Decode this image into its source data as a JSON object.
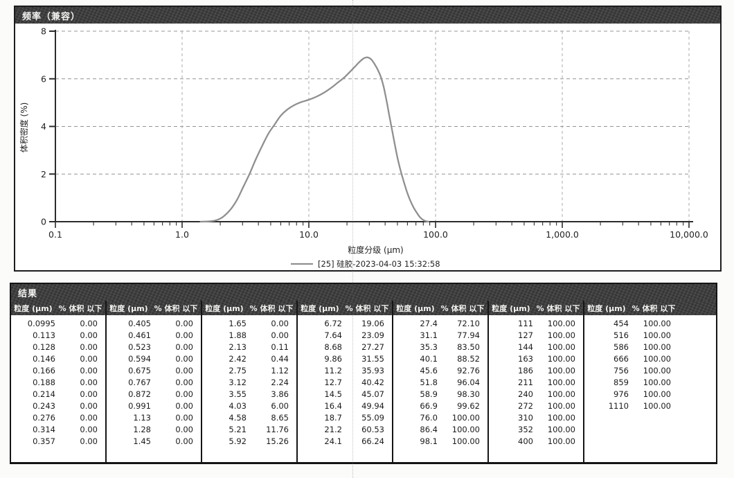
{
  "frequency_panel": {
    "title": "频率（兼容）"
  },
  "results_panel": {
    "title": "结果"
  },
  "chart_data": [
    {
      "type": "line",
      "title": "频率（兼容）",
      "xlabel": "粒度分级 (μm)",
      "ylabel": "体积密度 (%)",
      "x_scale": "log",
      "xlim": [
        0.1,
        10000
      ],
      "ylim": [
        0,
        8
      ],
      "xtick_labels": [
        "0.1",
        "1.0",
        "10.0",
        "100.0",
        "1,000.0",
        "10,000.0"
      ],
      "xtick_values": [
        0.1,
        1,
        10,
        100,
        1000,
        10000
      ],
      "yticks": [
        0,
        2,
        4,
        6,
        8
      ],
      "grid": "dashed",
      "legend_position": "bottom-center",
      "series": [
        {
          "name": "[25] 硅胶-2023-04-03 15:32:58",
          "color": "#8f8f8f",
          "points": [
            [
              1.4,
              0
            ],
            [
              1.7,
              0.02
            ],
            [
              1.9,
              0.08
            ],
            [
              2.1,
              0.2
            ],
            [
              2.4,
              0.5
            ],
            [
              2.7,
              0.9
            ],
            [
              3.0,
              1.4
            ],
            [
              3.4,
              2.0
            ],
            [
              3.8,
              2.6
            ],
            [
              4.3,
              3.2
            ],
            [
              4.8,
              3.7
            ],
            [
              5.4,
              4.1
            ],
            [
              6.0,
              4.45
            ],
            [
              6.8,
              4.72
            ],
            [
              7.7,
              4.9
            ],
            [
              8.7,
              5.02
            ],
            [
              10,
              5.12
            ],
            [
              11.5,
              5.25
            ],
            [
              13,
              5.4
            ],
            [
              15,
              5.62
            ],
            [
              17,
              5.85
            ],
            [
              19,
              6.05
            ],
            [
              21,
              6.28
            ],
            [
              23,
              6.5
            ],
            [
              25,
              6.7
            ],
            [
              27,
              6.85
            ],
            [
              29,
              6.9
            ],
            [
              31,
              6.82
            ],
            [
              33,
              6.62
            ],
            [
              35,
              6.38
            ],
            [
              37,
              6.08
            ],
            [
              39,
              5.65
            ],
            [
              41,
              5.1
            ],
            [
              43,
              4.5
            ],
            [
              45,
              3.95
            ],
            [
              47.5,
              3.3
            ],
            [
              50,
              2.7
            ],
            [
              53,
              2.15
            ],
            [
              56,
              1.7
            ],
            [
              59.5,
              1.25
            ],
            [
              63,
              0.9
            ],
            [
              67,
              0.6
            ],
            [
              71,
              0.38
            ],
            [
              75,
              0.2
            ],
            [
              79,
              0.09
            ],
            [
              83,
              0.03
            ],
            [
              88,
              0
            ]
          ]
        }
      ]
    },
    {
      "type": "table",
      "title": "结果",
      "column_group_headers": [
        "粒度 (μm)",
        "% 体积 以下"
      ],
      "groups": [
        [
          [
            "0.0995",
            "0.00"
          ],
          [
            "0.113",
            "0.00"
          ],
          [
            "0.128",
            "0.00"
          ],
          [
            "0.146",
            "0.00"
          ],
          [
            "0.166",
            "0.00"
          ],
          [
            "0.188",
            "0.00"
          ],
          [
            "0.214",
            "0.00"
          ],
          [
            "0.243",
            "0.00"
          ],
          [
            "0.276",
            "0.00"
          ],
          [
            "0.314",
            "0.00"
          ],
          [
            "0.357",
            "0.00"
          ]
        ],
        [
          [
            "0.405",
            "0.00"
          ],
          [
            "0.461",
            "0.00"
          ],
          [
            "0.523",
            "0.00"
          ],
          [
            "0.594",
            "0.00"
          ],
          [
            "0.675",
            "0.00"
          ],
          [
            "0.767",
            "0.00"
          ],
          [
            "0.872",
            "0.00"
          ],
          [
            "0.991",
            "0.00"
          ],
          [
            "1.13",
            "0.00"
          ],
          [
            "1.28",
            "0.00"
          ],
          [
            "1.45",
            "0.00"
          ]
        ],
        [
          [
            "1.65",
            "0.00"
          ],
          [
            "1.88",
            "0.00"
          ],
          [
            "2.13",
            "0.11"
          ],
          [
            "2.42",
            "0.44"
          ],
          [
            "2.75",
            "1.12"
          ],
          [
            "3.12",
            "2.24"
          ],
          [
            "3.55",
            "3.86"
          ],
          [
            "4.03",
            "6.00"
          ],
          [
            "4.58",
            "8.65"
          ],
          [
            "5.21",
            "11.76"
          ],
          [
            "5.92",
            "15.26"
          ]
        ],
        [
          [
            "6.72",
            "19.06"
          ],
          [
            "7.64",
            "23.09"
          ],
          [
            "8.68",
            "27.27"
          ],
          [
            "9.86",
            "31.55"
          ],
          [
            "11.2",
            "35.93"
          ],
          [
            "12.7",
            "40.42"
          ],
          [
            "14.5",
            "45.07"
          ],
          [
            "16.4",
            "49.94"
          ],
          [
            "18.7",
            "55.09"
          ],
          [
            "21.2",
            "60.53"
          ],
          [
            "24.1",
            "66.24"
          ]
        ],
        [
          [
            "27.4",
            "72.10"
          ],
          [
            "31.1",
            "77.94"
          ],
          [
            "35.3",
            "83.50"
          ],
          [
            "40.1",
            "88.52"
          ],
          [
            "45.6",
            "92.76"
          ],
          [
            "51.8",
            "96.04"
          ],
          [
            "58.9",
            "98.30"
          ],
          [
            "66.9",
            "99.62"
          ],
          [
            "76.0",
            "100.00"
          ],
          [
            "86.4",
            "100.00"
          ],
          [
            "98.1",
            "100.00"
          ]
        ],
        [
          [
            "111",
            "100.00"
          ],
          [
            "127",
            "100.00"
          ],
          [
            "144",
            "100.00"
          ],
          [
            "163",
            "100.00"
          ],
          [
            "186",
            "100.00"
          ],
          [
            "211",
            "100.00"
          ],
          [
            "240",
            "100.00"
          ],
          [
            "272",
            "100.00"
          ],
          [
            "310",
            "100.00"
          ],
          [
            "352",
            "100.00"
          ],
          [
            "400",
            "100.00"
          ]
        ],
        [
          [
            "454",
            "100.00"
          ],
          [
            "516",
            "100.00"
          ],
          [
            "586",
            "100.00"
          ],
          [
            "666",
            "100.00"
          ],
          [
            "756",
            "100.00"
          ],
          [
            "859",
            "100.00"
          ],
          [
            "976",
            "100.00"
          ],
          [
            "1110",
            "100.00"
          ]
        ]
      ]
    }
  ]
}
